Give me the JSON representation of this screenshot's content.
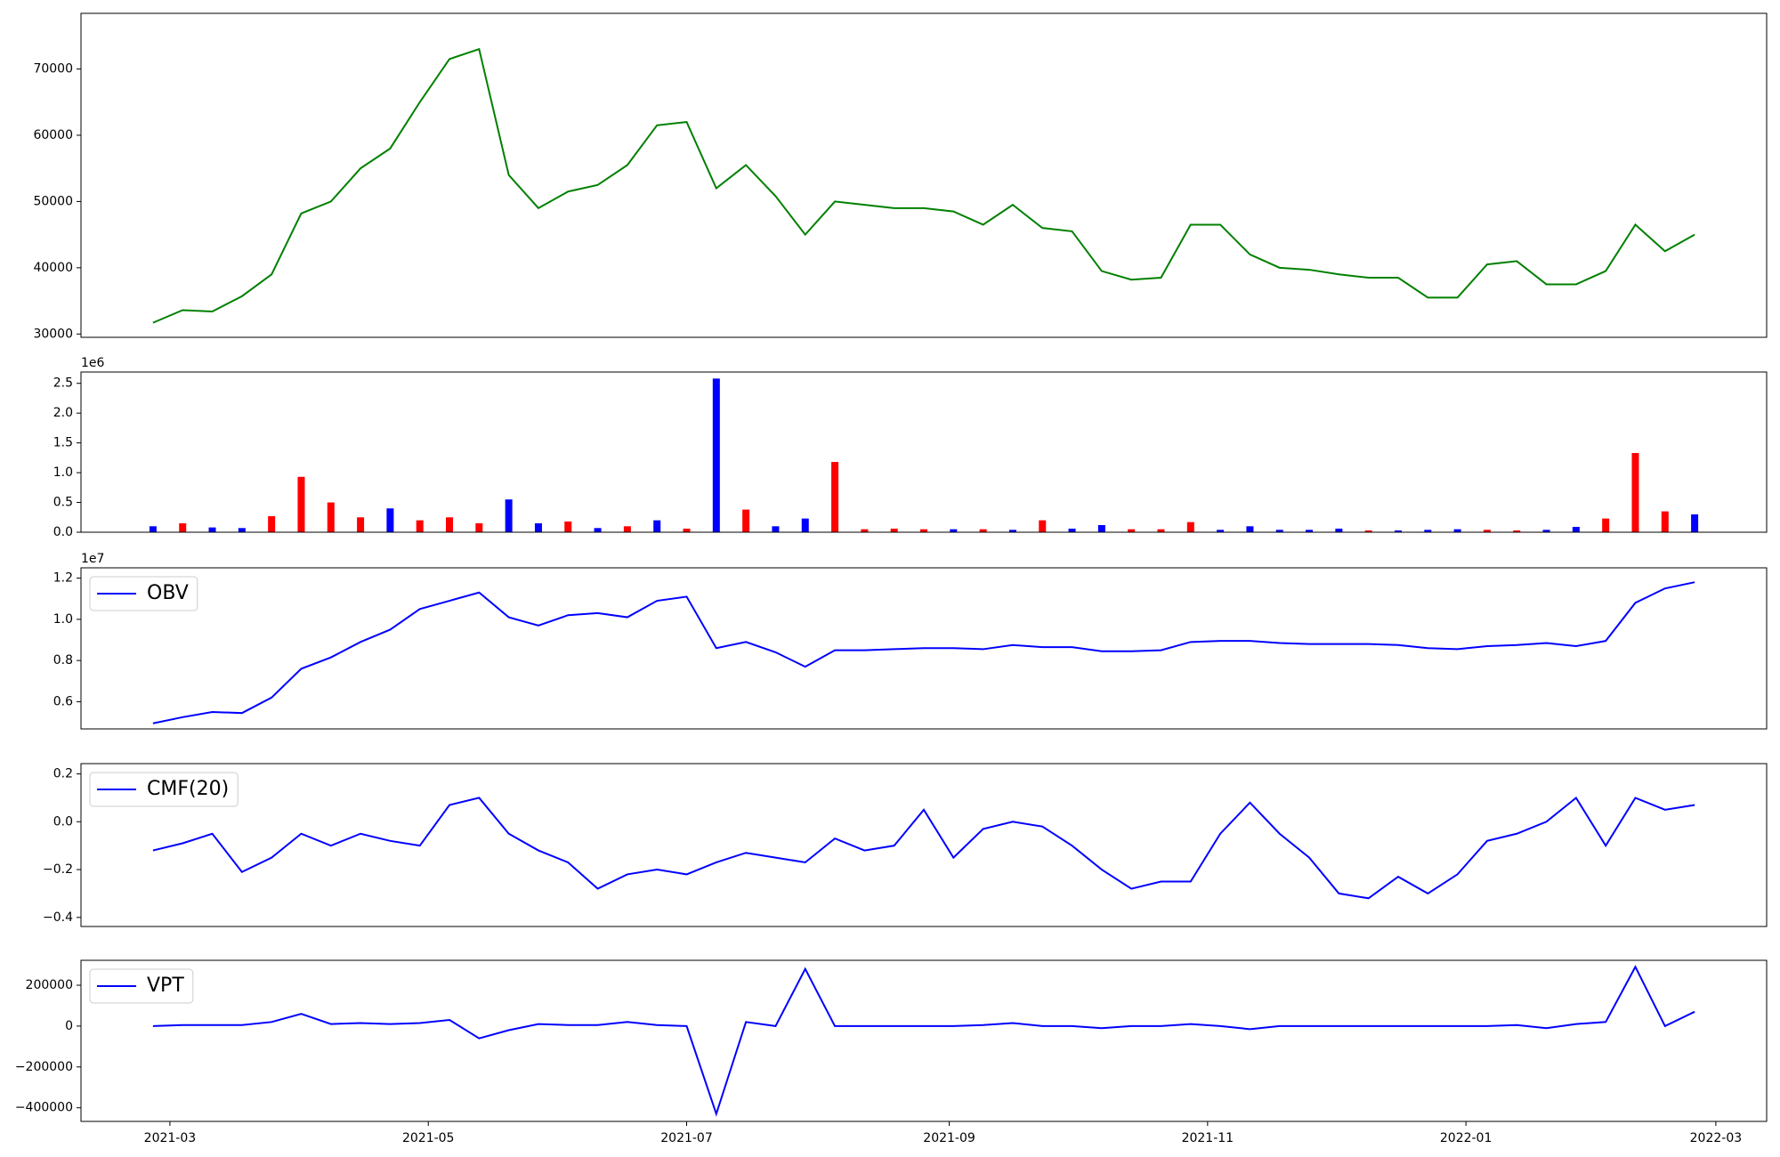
{
  "chart_data": [
    {
      "type": "line",
      "color": "#008000",
      "x": [
        "2021-02-25",
        "2021-03-04",
        "2021-03-11",
        "2021-03-18",
        "2021-03-25",
        "2021-04-01",
        "2021-04-08",
        "2021-04-15",
        "2021-04-22",
        "2021-04-29",
        "2021-05-06",
        "2021-05-13",
        "2021-05-20",
        "2021-05-27",
        "2021-06-03",
        "2021-06-10",
        "2021-06-17",
        "2021-06-24",
        "2021-07-01",
        "2021-07-08",
        "2021-07-15",
        "2021-07-22",
        "2021-07-29",
        "2021-08-05",
        "2021-08-12",
        "2021-08-19",
        "2021-08-26",
        "2021-09-02",
        "2021-09-09",
        "2021-09-16",
        "2021-09-23",
        "2021-09-30",
        "2021-10-07",
        "2021-10-14",
        "2021-10-21",
        "2021-10-28",
        "2021-11-04",
        "2021-11-11",
        "2021-11-18",
        "2021-11-25",
        "2021-12-02",
        "2021-12-09",
        "2021-12-16",
        "2021-12-23",
        "2021-12-30",
        "2022-01-06",
        "2022-01-13",
        "2022-01-20",
        "2022-01-27",
        "2022-02-03",
        "2022-02-10",
        "2022-02-17",
        "2022-02-24"
      ],
      "values": [
        31700,
        33600,
        33400,
        35700,
        39000,
        48200,
        50000,
        55000,
        58000,
        65000,
        71500,
        73000,
        54000,
        49000,
        51500,
        52500,
        55500,
        61500,
        62000,
        52000,
        55500,
        50800,
        45000,
        50000,
        49500,
        49000,
        49000,
        48500,
        46500,
        49500,
        46000,
        45500,
        39500,
        38200,
        38500,
        46500,
        46500,
        42000,
        40000,
        39700,
        39000,
        38500,
        38500,
        35500,
        35500,
        40500,
        41000,
        37500,
        37500,
        39500,
        46500,
        42500,
        45000
      ],
      "xlim": [
        "2021-02-08",
        "2022-03-13"
      ],
      "ylim": [
        29500,
        78400
      ],
      "yticks": [
        30000,
        40000,
        50000,
        60000,
        70000
      ]
    },
    {
      "type": "bar",
      "offset_text": "1e6",
      "x": [
        "2021-02-25",
        "2021-03-04",
        "2021-03-11",
        "2021-03-18",
        "2021-03-25",
        "2021-04-01",
        "2021-04-08",
        "2021-04-15",
        "2021-04-22",
        "2021-04-29",
        "2021-05-06",
        "2021-05-13",
        "2021-05-20",
        "2021-05-27",
        "2021-06-03",
        "2021-06-10",
        "2021-06-17",
        "2021-06-24",
        "2021-07-01",
        "2021-07-08",
        "2021-07-15",
        "2021-07-22",
        "2021-07-29",
        "2021-08-05",
        "2021-08-12",
        "2021-08-19",
        "2021-08-26",
        "2021-09-02",
        "2021-09-09",
        "2021-09-16",
        "2021-09-23",
        "2021-09-30",
        "2021-10-07",
        "2021-10-14",
        "2021-10-21",
        "2021-10-28",
        "2021-11-04",
        "2021-11-11",
        "2021-11-18",
        "2021-11-25",
        "2021-12-02",
        "2021-12-09",
        "2021-12-16",
        "2021-12-23",
        "2021-12-30",
        "2022-01-06",
        "2022-01-13",
        "2022-01-20",
        "2022-01-27",
        "2022-02-03",
        "2022-02-10",
        "2022-02-17",
        "2022-02-24"
      ],
      "values": [
        100000,
        150000,
        80000,
        70000,
        270000,
        930000,
        500000,
        250000,
        400000,
        200000,
        250000,
        150000,
        550000,
        150000,
        180000,
        70000,
        100000,
        200000,
        60000,
        2580000,
        380000,
        100000,
        230000,
        1180000,
        50000,
        60000,
        50000,
        50000,
        50000,
        40000,
        200000,
        60000,
        120000,
        50000,
        50000,
        170000,
        40000,
        100000,
        40000,
        40000,
        60000,
        30000,
        30000,
        40000,
        50000,
        40000,
        30000,
        40000,
        90000,
        230000,
        1330000,
        350000,
        300000
      ],
      "colors": [
        "blue",
        "red",
        "blue",
        "blue",
        "red",
        "red",
        "red",
        "red",
        "blue",
        "red",
        "red",
        "red",
        "blue",
        "blue",
        "red",
        "blue",
        "red",
        "blue",
        "red",
        "blue",
        "red",
        "blue",
        "blue",
        "red",
        "red",
        "red",
        "red",
        "blue",
        "red",
        "blue",
        "red",
        "blue",
        "blue",
        "red",
        "red",
        "red",
        "blue",
        "blue",
        "blue",
        "blue",
        "blue",
        "red",
        "blue",
        "blue",
        "blue",
        "red",
        "red",
        "blue",
        "blue",
        "red",
        "red",
        "red",
        "blue"
      ],
      "xlim": [
        "2021-02-08",
        "2022-03-13"
      ],
      "ylim": [
        0,
        2690000
      ],
      "yticks": [
        {
          "value": 0,
          "label": "0.0"
        },
        {
          "value": 500000,
          "label": "0.5"
        },
        {
          "value": 1000000,
          "label": "1.0"
        },
        {
          "value": 1500000,
          "label": "1.5"
        },
        {
          "value": 2000000,
          "label": "2.0"
        },
        {
          "value": 2500000,
          "label": "2.5"
        }
      ]
    },
    {
      "type": "line",
      "offset_text": "1e7",
      "legend": "upper left",
      "x": [
        "2021-02-25",
        "2021-03-04",
        "2021-03-11",
        "2021-03-18",
        "2021-03-25",
        "2021-04-01",
        "2021-04-08",
        "2021-04-15",
        "2021-04-22",
        "2021-04-29",
        "2021-05-06",
        "2021-05-13",
        "2021-05-20",
        "2021-05-27",
        "2021-06-03",
        "2021-06-10",
        "2021-06-17",
        "2021-06-24",
        "2021-07-01",
        "2021-07-08",
        "2021-07-15",
        "2021-07-22",
        "2021-07-29",
        "2021-08-05",
        "2021-08-12",
        "2021-08-19",
        "2021-08-26",
        "2021-09-02",
        "2021-09-09",
        "2021-09-16",
        "2021-09-23",
        "2021-09-30",
        "2021-10-07",
        "2021-10-14",
        "2021-10-21",
        "2021-10-28",
        "2021-11-04",
        "2021-11-11",
        "2021-11-18",
        "2021-11-25",
        "2021-12-02",
        "2021-12-09",
        "2021-12-16",
        "2021-12-23",
        "2021-12-30",
        "2022-01-06",
        "2022-01-13",
        "2022-01-20",
        "2022-01-27",
        "2022-02-03",
        "2022-02-10",
        "2022-02-17",
        "2022-02-24"
      ],
      "series": [
        {
          "name": "OBV",
          "color": "#0000ff",
          "values": [
            4950000,
            5250000,
            5500000,
            5450000,
            6200000,
            7600000,
            8150000,
            8900000,
            9500000,
            10500000,
            10900000,
            11300000,
            10100000,
            9700000,
            10200000,
            10300000,
            10100000,
            10900000,
            11100000,
            8600000,
            8900000,
            8400000,
            7700000,
            8500000,
            8500000,
            8550000,
            8600000,
            8600000,
            8550000,
            8750000,
            8650000,
            8650000,
            8450000,
            8450000,
            8500000,
            8900000,
            8950000,
            8950000,
            8850000,
            8800000,
            8800000,
            8800000,
            8750000,
            8600000,
            8550000,
            8700000,
            8750000,
            8850000,
            8700000,
            8950000,
            10800000,
            11500000,
            11800000
          ]
        }
      ],
      "xlim": [
        "2021-02-08",
        "2022-03-13"
      ],
      "ylim": [
        4680000,
        12500000
      ],
      "yticks": [
        {
          "value": 6000000,
          "label": "0.6"
        },
        {
          "value": 8000000,
          "label": "0.8"
        },
        {
          "value": 10000000,
          "label": "1.0"
        },
        {
          "value": 12000000,
          "label": "1.2"
        }
      ]
    },
    {
      "type": "line",
      "legend": "upper left",
      "x": [
        "2021-02-25",
        "2021-03-04",
        "2021-03-11",
        "2021-03-18",
        "2021-03-25",
        "2021-04-01",
        "2021-04-08",
        "2021-04-15",
        "2021-04-22",
        "2021-04-29",
        "2021-05-06",
        "2021-05-13",
        "2021-05-20",
        "2021-05-27",
        "2021-06-03",
        "2021-06-10",
        "2021-06-17",
        "2021-06-24",
        "2021-07-01",
        "2021-07-08",
        "2021-07-15",
        "2021-07-22",
        "2021-07-29",
        "2021-08-05",
        "2021-08-12",
        "2021-08-19",
        "2021-08-26",
        "2021-09-02",
        "2021-09-09",
        "2021-09-16",
        "2021-09-23",
        "2021-09-30",
        "2021-10-07",
        "2021-10-14",
        "2021-10-21",
        "2021-10-28",
        "2021-11-04",
        "2021-11-11",
        "2021-11-18",
        "2021-11-25",
        "2021-12-02",
        "2021-12-09",
        "2021-12-16",
        "2021-12-23",
        "2021-12-30",
        "2022-01-06",
        "2022-01-13",
        "2022-01-20",
        "2022-01-27",
        "2022-02-03",
        "2022-02-10",
        "2022-02-17",
        "2022-02-24"
      ],
      "series": [
        {
          "name": "CMF(20)",
          "color": "#0000ff",
          "values": [
            -0.12,
            -0.09,
            -0.05,
            -0.21,
            -0.15,
            -0.05,
            -0.1,
            -0.05,
            -0.08,
            -0.1,
            0.07,
            0.1,
            -0.05,
            -0.12,
            -0.17,
            -0.28,
            -0.22,
            -0.2,
            -0.22,
            -0.17,
            -0.13,
            -0.15,
            -0.17,
            -0.07,
            -0.12,
            -0.1,
            0.05,
            -0.15,
            -0.03,
            0.0,
            -0.02,
            -0.1,
            -0.2,
            -0.28,
            -0.25,
            -0.25,
            -0.05,
            0.08,
            -0.05,
            -0.15,
            -0.3,
            -0.32,
            -0.23,
            -0.3,
            -0.22,
            -0.08,
            -0.05,
            0.0,
            0.1,
            -0.1,
            0.1,
            0.05,
            0.07
          ]
        }
      ],
      "xlim": [
        "2021-02-08",
        "2022-03-13"
      ],
      "ylim": [
        -0.438,
        0.243
      ],
      "yticks": [
        {
          "value": -0.4,
          "label": "−0.4"
        },
        {
          "value": -0.2,
          "label": "−0.2"
        },
        {
          "value": 0,
          "label": "0.0"
        },
        {
          "value": 0.2,
          "label": "0.2"
        }
      ]
    },
    {
      "type": "line",
      "legend": "upper left",
      "x": [
        "2021-02-25",
        "2021-03-04",
        "2021-03-11",
        "2021-03-18",
        "2021-03-25",
        "2021-04-01",
        "2021-04-08",
        "2021-04-15",
        "2021-04-22",
        "2021-04-29",
        "2021-05-06",
        "2021-05-13",
        "2021-05-20",
        "2021-05-27",
        "2021-06-03",
        "2021-06-10",
        "2021-06-17",
        "2021-06-24",
        "2021-07-01",
        "2021-07-08",
        "2021-07-15",
        "2021-07-22",
        "2021-07-29",
        "2021-08-05",
        "2021-08-12",
        "2021-08-19",
        "2021-08-26",
        "2021-09-02",
        "2021-09-09",
        "2021-09-16",
        "2021-09-23",
        "2021-09-30",
        "2021-10-07",
        "2021-10-14",
        "2021-10-21",
        "2021-10-28",
        "2021-11-04",
        "2021-11-11",
        "2021-11-18",
        "2021-11-25",
        "2021-12-02",
        "2021-12-09",
        "2021-12-16",
        "2021-12-23",
        "2021-12-30",
        "2022-01-06",
        "2022-01-13",
        "2022-01-20",
        "2022-01-27",
        "2022-02-03",
        "2022-02-10",
        "2022-02-17",
        "2022-02-24"
      ],
      "series": [
        {
          "name": "VPT",
          "color": "#0000ff",
          "values": [
            0,
            5000,
            5000,
            5000,
            20000,
            60000,
            10000,
            15000,
            10000,
            15000,
            30000,
            -60000,
            -20000,
            10000,
            5000,
            5000,
            20000,
            5000,
            0,
            -430000,
            20000,
            0,
            280000,
            0,
            0,
            0,
            0,
            0,
            5000,
            15000,
            0,
            0,
            -10000,
            0,
            0,
            10000,
            0,
            -15000,
            0,
            0,
            0,
            0,
            0,
            0,
            0,
            0,
            5000,
            -10000,
            10000,
            20000,
            290000,
            0,
            70000
          ]
        }
      ],
      "xlim": [
        "2021-02-08",
        "2022-03-13"
      ],
      "ylim": [
        -466700,
        322000
      ],
      "yticks": [
        {
          "value": -400000,
          "label": "−400000"
        },
        {
          "value": -200000,
          "label": "−200000"
        },
        0,
        200000
      ],
      "xticks": [
        {
          "value": "2021-03-01",
          "label": "2021-03"
        },
        {
          "value": "2021-05-01",
          "label": "2021-05"
        },
        {
          "value": "2021-07-01",
          "label": "2021-07"
        },
        {
          "value": "2021-09-01",
          "label": "2021-09"
        },
        {
          "value": "2021-11-01",
          "label": "2021-11"
        },
        {
          "value": "2022-01-01",
          "label": "2022-01"
        },
        {
          "value": "2022-03-01",
          "label": "2022-03"
        }
      ]
    }
  ]
}
